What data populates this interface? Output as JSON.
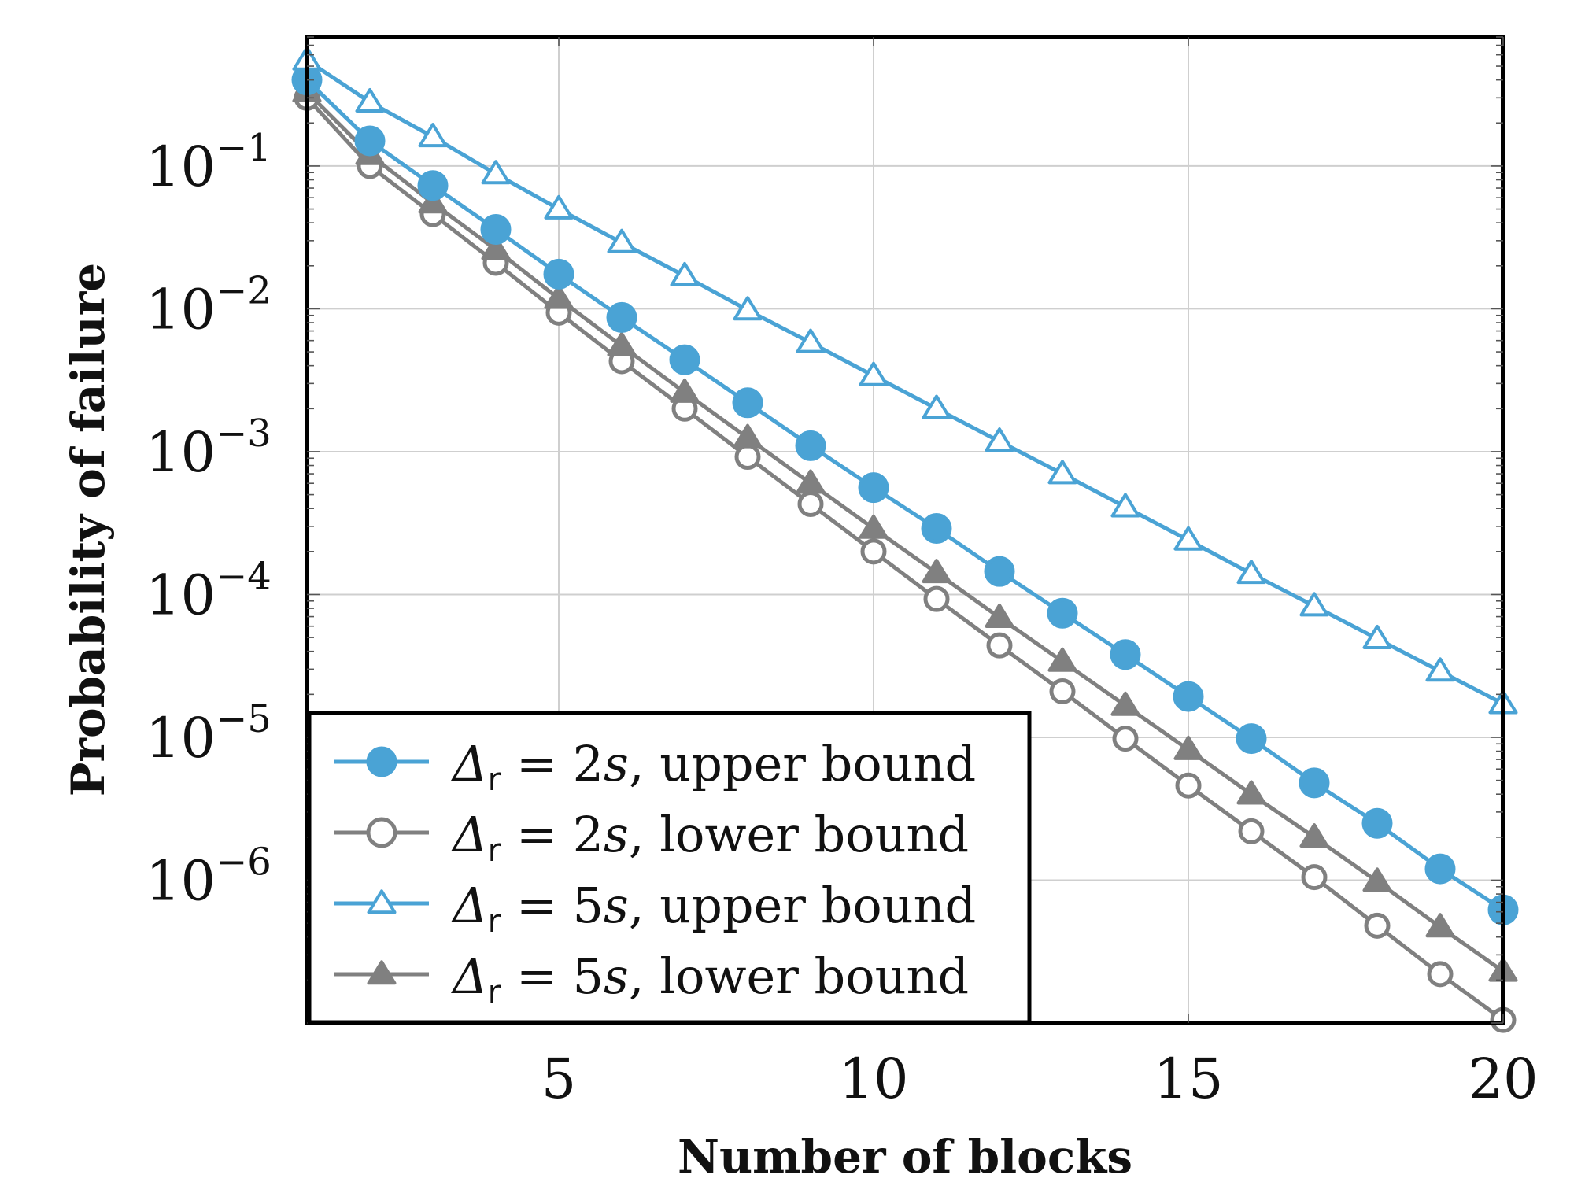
{
  "chart_data": {
    "type": "line",
    "title": "",
    "xlabel": "Number of blocks",
    "ylabel": "Probability of failure",
    "xlim": [
      1,
      20
    ],
    "ylim": [
      1e-07,
      0.8
    ],
    "yscale": "log",
    "grid": true,
    "legend_position": "bottom-left",
    "x_ticks": [
      5,
      10,
      15,
      20
    ],
    "y_ticks": [
      {
        "value": 0.1,
        "base": "10",
        "exp": "−1"
      },
      {
        "value": 0.01,
        "base": "10",
        "exp": "−2"
      },
      {
        "value": 0.001,
        "base": "10",
        "exp": "−3"
      },
      {
        "value": 0.0001,
        "base": "10",
        "exp": "−4"
      },
      {
        "value": 1e-05,
        "base": "10",
        "exp": "−5"
      },
      {
        "value": 1e-06,
        "base": "10",
        "exp": "−6"
      }
    ],
    "x": [
      1,
      2,
      3,
      4,
      5,
      6,
      7,
      8,
      9,
      10,
      11,
      12,
      13,
      14,
      15,
      16,
      17,
      18,
      19,
      20
    ],
    "series": [
      {
        "name": "Δr = 2s, upper bound",
        "legend": {
          "delta": "Δ",
          "sub": "r",
          "eq": "= 2",
          "var": "s",
          "rest": ", upper bound"
        },
        "color": "#4aa3d5",
        "marker": "circle",
        "filled": true,
        "values": [
          0.4,
          0.15,
          0.073,
          0.036,
          0.0175,
          0.0087,
          0.0044,
          0.0022,
          0.0011,
          0.00056,
          0.00029,
          0.000145,
          7.4e-05,
          3.8e-05,
          1.93e-05,
          9.8e-06,
          4.8e-06,
          2.5e-06,
          1.2e-06,
          6.2e-07
        ]
      },
      {
        "name": "Δr = 2s, lower bound",
        "legend": {
          "delta": "Δ",
          "sub": "r",
          "eq": "= 2",
          "var": "s",
          "rest": ", lower bound"
        },
        "color": "#808080",
        "marker": "circle",
        "filled": false,
        "values": [
          0.3,
          0.1,
          0.046,
          0.021,
          0.0094,
          0.0043,
          0.002,
          0.00092,
          0.00043,
          0.0002,
          9.3e-05,
          4.4e-05,
          2.1e-05,
          9.8e-06,
          4.6e-06,
          2.2e-06,
          1.05e-06,
          4.8e-07,
          2.2e-07,
          1.05e-07
        ]
      },
      {
        "name": "Δr = 5s, upper bound",
        "legend": {
          "delta": "Δ",
          "sub": "r",
          "eq": "= 5",
          "var": "s",
          "rest": ", upper bound"
        },
        "color": "#4aa3d5",
        "marker": "triangle",
        "filled": false,
        "values": [
          0.55,
          0.28,
          0.16,
          0.088,
          0.05,
          0.029,
          0.017,
          0.0098,
          0.0058,
          0.0034,
          0.002,
          0.00118,
          0.0007,
          0.00041,
          0.00024,
          0.00014,
          8.3e-05,
          4.9e-05,
          2.9e-05,
          1.72e-05
        ]
      },
      {
        "name": "Δr = 5s, lower bound",
        "legend": {
          "delta": "Δ",
          "sub": "r",
          "eq": "= 5",
          "var": "s",
          "rest": ", lower bound"
        },
        "color": "#808080",
        "marker": "triangle",
        "filled": true,
        "values": [
          0.33,
          0.12,
          0.055,
          0.026,
          0.0118,
          0.0055,
          0.0026,
          0.00125,
          0.0006,
          0.00029,
          0.000142,
          6.9e-05,
          3.4e-05,
          1.67e-05,
          8.2e-06,
          4e-06,
          2e-06,
          9.8e-07,
          4.7e-07,
          2.3e-07
        ]
      }
    ]
  }
}
